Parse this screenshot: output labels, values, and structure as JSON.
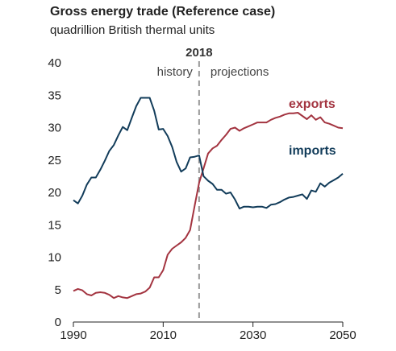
{
  "chart_data": {
    "type": "line",
    "title": "Gross energy trade (Reference case)",
    "subtitle": "quadrillion British thermal units",
    "ylim": [
      0,
      40
    ],
    "xlim": [
      1990,
      2050
    ],
    "yticks": [
      0,
      5,
      10,
      15,
      20,
      25,
      30,
      35,
      40
    ],
    "xticks": [
      1990,
      2010,
      2030,
      2050
    ],
    "grid": false,
    "divider": {
      "year": 2018,
      "label": "2018",
      "left_label": "history",
      "right_label": "projections"
    },
    "colors": {
      "exports": "#a33440",
      "imports": "#123c5a",
      "divider": "#999999",
      "axis": "#222222"
    },
    "series": [
      {
        "name": "exports",
        "x": [
          1990,
          1991,
          1992,
          1993,
          1994,
          1995,
          1996,
          1997,
          1998,
          1999,
          2000,
          2001,
          2002,
          2003,
          2004,
          2005,
          2006,
          2007,
          2008,
          2009,
          2010,
          2011,
          2012,
          2013,
          2014,
          2015,
          2016,
          2017,
          2018,
          2019,
          2020,
          2021,
          2022,
          2023,
          2024,
          2025,
          2026,
          2027,
          2028,
          2029,
          2030,
          2031,
          2032,
          2033,
          2034,
          2035,
          2036,
          2037,
          2038,
          2039,
          2040,
          2041,
          2042,
          2043,
          2044,
          2045,
          2046,
          2047,
          2048,
          2049,
          2050
        ],
        "values": [
          4.8,
          5.1,
          4.9,
          4.3,
          4.1,
          4.5,
          4.6,
          4.5,
          4.2,
          3.7,
          4.0,
          3.8,
          3.7,
          4.0,
          4.3,
          4.4,
          4.7,
          5.3,
          6.9,
          6.9,
          8.0,
          10.4,
          11.3,
          11.8,
          12.3,
          13.0,
          14.2,
          17.9,
          21.5,
          23.7,
          26.0,
          26.8,
          27.2,
          28.1,
          28.9,
          29.8,
          30.0,
          29.5,
          29.9,
          30.2,
          30.5,
          30.8,
          30.8,
          30.8,
          31.2,
          31.5,
          31.7,
          32.0,
          32.2,
          32.2,
          32.3,
          31.8,
          31.3,
          31.9,
          31.2,
          31.6,
          30.8,
          30.6,
          30.3,
          30.0,
          29.9
        ]
      },
      {
        "name": "imports",
        "x": [
          1990,
          1991,
          1992,
          1993,
          1994,
          1995,
          1996,
          1997,
          1998,
          1999,
          2000,
          2001,
          2002,
          2003,
          2004,
          2005,
          2006,
          2007,
          2008,
          2009,
          2010,
          2011,
          2012,
          2013,
          2014,
          2015,
          2016,
          2017,
          2018,
          2019,
          2020,
          2021,
          2022,
          2023,
          2024,
          2025,
          2026,
          2027,
          2028,
          2029,
          2030,
          2031,
          2032,
          2033,
          2034,
          2035,
          2036,
          2037,
          2038,
          2039,
          2040,
          2041,
          2042,
          2043,
          2044,
          2045,
          2046,
          2047,
          2048,
          2049,
          2050
        ],
        "values": [
          18.8,
          18.3,
          19.5,
          21.2,
          22.3,
          22.3,
          23.5,
          24.9,
          26.4,
          27.3,
          28.8,
          30.1,
          29.6,
          31.5,
          33.3,
          34.6,
          34.6,
          34.6,
          32.6,
          29.7,
          29.8,
          28.7,
          27.0,
          24.7,
          23.2,
          23.7,
          25.4,
          25.5,
          25.7,
          22.5,
          21.8,
          21.3,
          20.4,
          20.4,
          19.8,
          20.0,
          18.9,
          17.5,
          17.8,
          17.8,
          17.7,
          17.8,
          17.8,
          17.6,
          18.1,
          18.2,
          18.5,
          18.9,
          19.2,
          19.3,
          19.5,
          19.7,
          19.0,
          20.3,
          20.1,
          21.4,
          20.9,
          21.5,
          21.9,
          22.3,
          22.9
        ]
      }
    ]
  }
}
